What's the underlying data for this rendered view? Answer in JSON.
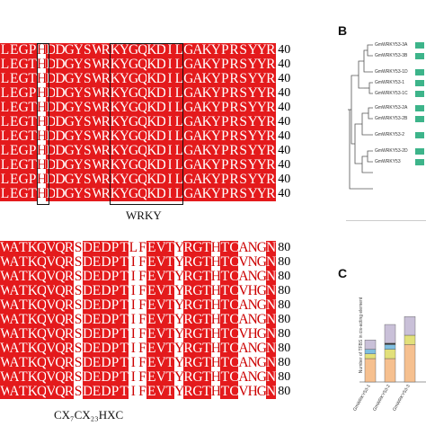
{
  "panel_labels": {
    "b": "B",
    "c": "C"
  },
  "alignment_top": {
    "rows": [
      "LLEGPHDDGYSWRKYGQKDILGAKYPRSYYR",
      "LLEGTHDDGYSWRKYGQKDILGAKYPRSYYR",
      "LLEGTHDDGYSWRKYGQKDILGAKYPRSYYR",
      "LLEGPHDDGYSWRKYGQKDILGAKYPRSYYR",
      "LLEGTHDDGYSWRKYGQKDILGAKYPRSYYR",
      "LLEGTHDDGYSWRKYGQKDILGAKYPRSYYR",
      "LLEGTHDDGYSWRKYGQKDILGAKYPRSYYR",
      "LLEGPHDDGYSWRKYGQKDILGAKYPRSYYR",
      "LLEGTHDDGYSWRKYGQKDILGAKYPRSYYR",
      "LLEGPHDDGYSWRKYGQKDILGAKYPRSYYR",
      "LLEGTHDDGYSWRKYGQKDILGAKYPRSYYR"
    ],
    "end_number": "40",
    "motif_label": "WRKY"
  },
  "alignment_bottom": {
    "rows": [
      "CWATKQVQRSDEDPTLFEVTYRGTHTCANGN",
      "CWATKQVQRSDEDPTIFEVTYRGTHTCVNGN",
      "CWATKQVQRSDEDPTIFEVTYRGTHTCANGN",
      "CWATKQVQRSDEDPTIFEVTYRGTHTCVHGN",
      "CWATKQVQRSDEDPTIFEVTYRGTHTCANGN",
      "CWATKQVQRSDEDPTIFEVTYRGTHTCANGN",
      "CWATKQVQRSDEDPTIFEVTYRGTHTCVHGN",
      "CWATKQVQRSDEDPTIFEVTYRGTHTCANGN",
      "CWATKQVQRSDEDPTIFEVTYRGTHTCANGN",
      "CWATKQVQRSDEDPTIFEVTYRGTHTCANGN",
      "CWATKQVQRSDEDPTIFEVTYRGTHTCVHGN"
    ],
    "end_number": "80",
    "motif_label": "CX₇CX₂₃HXC"
  },
  "tree": {
    "labels": [
      "GmWRKY53-3A",
      "GmWRKY53-3B",
      "GmWRKY53-1D",
      "GmWRKY53-1",
      "GmWRKY53-1C",
      "GmWRKY53-2A",
      "GmWRKY53-2B",
      "GmWRKY53-2",
      "GmWRKY53-2D",
      "GmWRKY53"
    ],
    "block_color": "#3db48a"
  },
  "bar_chart": {
    "ylabel": "Number of TFBS in cis-acting element",
    "categories": [
      "GmWRKY53-1",
      "GmWRKY53-2",
      "GmWRKY53-3"
    ],
    "segments": [
      [
        {
          "color": "#f6c08f",
          "value": 5
        },
        {
          "color": "#e2e07a",
          "value": 1
        },
        {
          "color": "#7fbfe0",
          "value": 1
        },
        {
          "color": "#c9c0d8",
          "value": 2
        }
      ],
      [
        {
          "color": "#f6c08f",
          "value": 5
        },
        {
          "color": "#e2e07a",
          "value": 2
        },
        {
          "color": "#7fbfe0",
          "value": 1
        },
        {
          "color": "#333333",
          "value": 0.3
        },
        {
          "color": "#c9c0d8",
          "value": 4
        }
      ],
      [
        {
          "color": "#f6c08f",
          "value": 8
        },
        {
          "color": "#e2e07a",
          "value": 2
        },
        {
          "color": "#c9c0d8",
          "value": 4
        }
      ]
    ]
  }
}
